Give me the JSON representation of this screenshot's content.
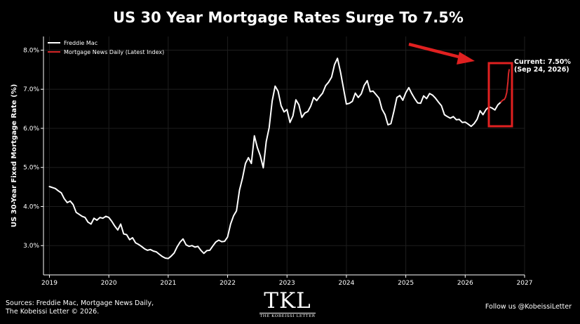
{
  "chart_data": {
    "type": "line",
    "title": "US 30 Year Mortgage Rates Surge To 7.5%",
    "xlabel": "",
    "ylabel": "US 30-Year Fixed Mortgage Rate (%)",
    "xlim": [
      2018.9,
      2027
    ],
    "ylim": [
      2.25,
      8.35
    ],
    "xticks": [
      2019,
      2020,
      2021,
      2022,
      2023,
      2024,
      2025,
      2026,
      2027
    ],
    "yticks": [
      3.0,
      4.0,
      5.0,
      6.0,
      7.0,
      8.0
    ],
    "ytick_labels": [
      "3.0%",
      "4.0%",
      "5.0%",
      "6.0%",
      "7.0%",
      "8.0%"
    ],
    "grid": true,
    "legend_position": "top-left",
    "series": [
      {
        "name": "Freddie Mac",
        "color": "#ffffff",
        "points": [
          [
            2019.0,
            4.51
          ],
          [
            2019.1,
            4.46
          ],
          [
            2019.15,
            4.4
          ],
          [
            2019.2,
            4.35
          ],
          [
            2019.25,
            4.2
          ],
          [
            2019.3,
            4.1
          ],
          [
            2019.35,
            4.14
          ],
          [
            2019.4,
            4.05
          ],
          [
            2019.45,
            3.85
          ],
          [
            2019.5,
            3.8
          ],
          [
            2019.55,
            3.75
          ],
          [
            2019.6,
            3.72
          ],
          [
            2019.65,
            3.6
          ],
          [
            2019.7,
            3.55
          ],
          [
            2019.75,
            3.7
          ],
          [
            2019.8,
            3.65
          ],
          [
            2019.85,
            3.72
          ],
          [
            2019.9,
            3.7
          ],
          [
            2019.95,
            3.75
          ],
          [
            2020.0,
            3.72
          ],
          [
            2020.05,
            3.62
          ],
          [
            2020.1,
            3.5
          ],
          [
            2020.15,
            3.4
          ],
          [
            2020.2,
            3.55
          ],
          [
            2020.25,
            3.3
          ],
          [
            2020.3,
            3.28
          ],
          [
            2020.35,
            3.15
          ],
          [
            2020.4,
            3.2
          ],
          [
            2020.45,
            3.07
          ],
          [
            2020.5,
            3.03
          ],
          [
            2020.55,
            2.98
          ],
          [
            2020.6,
            2.92
          ],
          [
            2020.65,
            2.88
          ],
          [
            2020.7,
            2.9
          ],
          [
            2020.75,
            2.86
          ],
          [
            2020.8,
            2.84
          ],
          [
            2020.85,
            2.78
          ],
          [
            2020.9,
            2.72
          ],
          [
            2020.95,
            2.68
          ],
          [
            2021.0,
            2.67
          ],
          [
            2021.05,
            2.73
          ],
          [
            2021.1,
            2.81
          ],
          [
            2021.15,
            2.97
          ],
          [
            2021.2,
            3.09
          ],
          [
            2021.25,
            3.17
          ],
          [
            2021.3,
            3.02
          ],
          [
            2021.35,
            2.98
          ],
          [
            2021.4,
            3.0
          ],
          [
            2021.45,
            2.96
          ],
          [
            2021.5,
            2.98
          ],
          [
            2021.55,
            2.88
          ],
          [
            2021.6,
            2.8
          ],
          [
            2021.65,
            2.87
          ],
          [
            2021.7,
            2.88
          ],
          [
            2021.75,
            2.99
          ],
          [
            2021.8,
            3.09
          ],
          [
            2021.85,
            3.14
          ],
          [
            2021.9,
            3.1
          ],
          [
            2021.95,
            3.11
          ],
          [
            2022.0,
            3.22
          ],
          [
            2022.05,
            3.55
          ],
          [
            2022.1,
            3.76
          ],
          [
            2022.15,
            3.89
          ],
          [
            2022.2,
            4.42
          ],
          [
            2022.25,
            4.72
          ],
          [
            2022.3,
            5.1
          ],
          [
            2022.35,
            5.25
          ],
          [
            2022.4,
            5.1
          ],
          [
            2022.45,
            5.81
          ],
          [
            2022.5,
            5.51
          ],
          [
            2022.55,
            5.3
          ],
          [
            2022.6,
            4.99
          ],
          [
            2022.65,
            5.66
          ],
          [
            2022.7,
            6.02
          ],
          [
            2022.75,
            6.7
          ],
          [
            2022.8,
            7.08
          ],
          [
            2022.85,
            6.95
          ],
          [
            2022.9,
            6.58
          ],
          [
            2022.95,
            6.42
          ],
          [
            2023.0,
            6.48
          ],
          [
            2023.05,
            6.15
          ],
          [
            2023.1,
            6.32
          ],
          [
            2023.15,
            6.73
          ],
          [
            2023.2,
            6.6
          ],
          [
            2023.25,
            6.28
          ],
          [
            2023.3,
            6.39
          ],
          [
            2023.35,
            6.43
          ],
          [
            2023.4,
            6.57
          ],
          [
            2023.45,
            6.79
          ],
          [
            2023.5,
            6.71
          ],
          [
            2023.55,
            6.81
          ],
          [
            2023.6,
            6.9
          ],
          [
            2023.65,
            7.09
          ],
          [
            2023.7,
            7.18
          ],
          [
            2023.75,
            7.31
          ],
          [
            2023.8,
            7.63
          ],
          [
            2023.85,
            7.79
          ],
          [
            2023.9,
            7.44
          ],
          [
            2023.95,
            7.03
          ],
          [
            2024.0,
            6.62
          ],
          [
            2024.05,
            6.64
          ],
          [
            2024.1,
            6.69
          ],
          [
            2024.15,
            6.9
          ],
          [
            2024.2,
            6.79
          ],
          [
            2024.25,
            6.88
          ],
          [
            2024.3,
            7.1
          ],
          [
            2024.35,
            7.22
          ],
          [
            2024.4,
            6.94
          ],
          [
            2024.45,
            6.95
          ],
          [
            2024.5,
            6.86
          ],
          [
            2024.55,
            6.77
          ],
          [
            2024.6,
            6.49
          ],
          [
            2024.65,
            6.35
          ],
          [
            2024.7,
            6.09
          ],
          [
            2024.75,
            6.12
          ],
          [
            2024.8,
            6.44
          ],
          [
            2024.85,
            6.79
          ],
          [
            2024.9,
            6.84
          ],
          [
            2024.95,
            6.72
          ],
          [
            2025.0,
            6.91
          ],
          [
            2025.05,
            7.04
          ],
          [
            2025.1,
            6.89
          ],
          [
            2025.15,
            6.76
          ],
          [
            2025.2,
            6.65
          ],
          [
            2025.25,
            6.64
          ],
          [
            2025.3,
            6.83
          ],
          [
            2025.35,
            6.76
          ],
          [
            2025.4,
            6.89
          ],
          [
            2025.45,
            6.85
          ],
          [
            2025.5,
            6.77
          ],
          [
            2025.55,
            6.67
          ],
          [
            2025.6,
            6.58
          ],
          [
            2025.65,
            6.35
          ],
          [
            2025.7,
            6.3
          ],
          [
            2025.75,
            6.26
          ],
          [
            2025.8,
            6.3
          ],
          [
            2025.85,
            6.22
          ],
          [
            2025.9,
            6.23
          ],
          [
            2025.95,
            6.15
          ],
          [
            2026.0,
            6.16
          ],
          [
            2026.05,
            6.11
          ],
          [
            2026.1,
            6.05
          ],
          [
            2026.15,
            6.12
          ],
          [
            2026.2,
            6.23
          ],
          [
            2026.25,
            6.45
          ],
          [
            2026.3,
            6.35
          ],
          [
            2026.35,
            6.48
          ],
          [
            2026.4,
            6.55
          ],
          [
            2026.45,
            6.52
          ],
          [
            2026.5,
            6.47
          ],
          [
            2026.55,
            6.6
          ],
          [
            2026.6,
            6.67
          ]
        ]
      },
      {
        "name": "Mortgage News Daily (Latest Index)",
        "color": "#d62728",
        "points": [
          [
            2026.6,
            6.67
          ],
          [
            2026.63,
            6.72
          ],
          [
            2026.66,
            6.74
          ],
          [
            2026.68,
            6.8
          ],
          [
            2026.7,
            6.92
          ],
          [
            2026.71,
            7.05
          ],
          [
            2026.72,
            7.2
          ],
          [
            2026.73,
            7.4
          ],
          [
            2026.74,
            7.5
          ]
        ]
      }
    ],
    "annotations": [
      {
        "text_line1": "Current: 7.50%",
        "text_line2": "(Sep 24, 2026)"
      }
    ]
  },
  "footer": {
    "sources_line1": "Sources: Freddie Mac, Mortgage News Daily,",
    "sources_line2": "The Kobeissi Letter © 2026.",
    "follow": "Follow us @KobeissiLetter",
    "logo_mark": "TKL",
    "logo_sub": "THE KOBEISSI LETTER"
  },
  "colors": {
    "background": "#000000",
    "line": "#ffffff",
    "highlight": "#d62728"
  }
}
